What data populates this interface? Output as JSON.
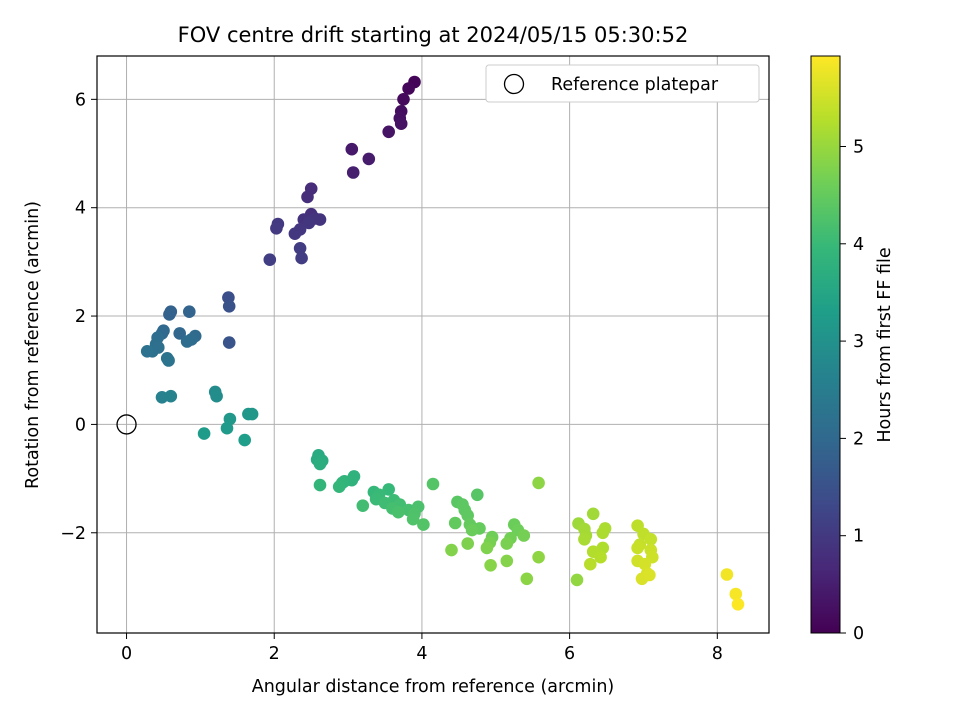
{
  "chart_data": {
    "type": "scatter",
    "title": "FOV centre drift starting at 2024/05/15 05:30:52",
    "xlabel": "Angular distance from reference (arcmin)",
    "ylabel": "Rotation from reference (arcmin)",
    "xlim": [
      -0.4,
      8.7
    ],
    "ylim": [
      -3.85,
      6.8
    ],
    "xticks": [
      0,
      2,
      4,
      6,
      8
    ],
    "yticks": [
      -2,
      0,
      2,
      4,
      6
    ],
    "grid": true,
    "legend": {
      "position": "top-right",
      "entries": [
        "Reference platepar"
      ]
    },
    "reference_point": {
      "x": 0,
      "y": 0,
      "marker": "open-circle"
    },
    "colorbar": {
      "label": "Hours from first FF file",
      "colormap": "viridis",
      "range": [
        0,
        5.93
      ],
      "ticks": [
        0,
        1,
        2,
        3,
        4,
        5
      ]
    },
    "colormap_stops": [
      "#440154",
      "#482878",
      "#3e4989",
      "#31688e",
      "#26828e",
      "#1f9e89",
      "#35b779",
      "#6ece58",
      "#b5de2b",
      "#fde725"
    ],
    "points": [
      {
        "x": 3.9,
        "y": 6.32,
        "h": 0.05
      },
      {
        "x": 3.82,
        "y": 6.2,
        "h": 0.1
      },
      {
        "x": 3.75,
        "y": 6.0,
        "h": 0.15
      },
      {
        "x": 3.72,
        "y": 5.78,
        "h": 0.2
      },
      {
        "x": 3.7,
        "y": 5.65,
        "h": 0.25
      },
      {
        "x": 3.72,
        "y": 5.55,
        "h": 0.28
      },
      {
        "x": 3.55,
        "y": 5.4,
        "h": 0.32
      },
      {
        "x": 3.05,
        "y": 5.08,
        "h": 0.4
      },
      {
        "x": 3.28,
        "y": 4.9,
        "h": 0.45
      },
      {
        "x": 3.07,
        "y": 4.65,
        "h": 0.5
      },
      {
        "x": 2.5,
        "y": 4.35,
        "h": 0.75
      },
      {
        "x": 2.45,
        "y": 4.2,
        "h": 0.78
      },
      {
        "x": 2.5,
        "y": 3.88,
        "h": 0.82
      },
      {
        "x": 2.4,
        "y": 3.78,
        "h": 0.85
      },
      {
        "x": 2.55,
        "y": 3.8,
        "h": 0.88
      },
      {
        "x": 2.62,
        "y": 3.78,
        "h": 0.9
      },
      {
        "x": 2.47,
        "y": 3.72,
        "h": 0.92
      },
      {
        "x": 2.35,
        "y": 3.6,
        "h": 0.95
      },
      {
        "x": 2.28,
        "y": 3.52,
        "h": 0.98
      },
      {
        "x": 2.05,
        "y": 3.7,
        "h": 1.0
      },
      {
        "x": 2.03,
        "y": 3.62,
        "h": 1.02
      },
      {
        "x": 2.35,
        "y": 3.25,
        "h": 1.05
      },
      {
        "x": 2.37,
        "y": 3.07,
        "h": 1.08
      },
      {
        "x": 1.94,
        "y": 3.04,
        "h": 1.1
      },
      {
        "x": 1.38,
        "y": 2.34,
        "h": 1.45
      },
      {
        "x": 1.39,
        "y": 2.18,
        "h": 1.5
      },
      {
        "x": 1.39,
        "y": 1.51,
        "h": 1.55
      },
      {
        "x": 0.6,
        "y": 2.08,
        "h": 1.85
      },
      {
        "x": 0.58,
        "y": 2.03,
        "h": 1.88
      },
      {
        "x": 0.85,
        "y": 2.08,
        "h": 1.9
      },
      {
        "x": 0.72,
        "y": 1.68,
        "h": 1.95
      },
      {
        "x": 0.5,
        "y": 1.73,
        "h": 2.0
      },
      {
        "x": 0.48,
        "y": 1.68,
        "h": 2.02
      },
      {
        "x": 0.93,
        "y": 1.63,
        "h": 2.05
      },
      {
        "x": 0.88,
        "y": 1.57,
        "h": 2.08
      },
      {
        "x": 0.82,
        "y": 1.53,
        "h": 2.1
      },
      {
        "x": 0.42,
        "y": 1.6,
        "h": 2.12
      },
      {
        "x": 0.4,
        "y": 1.48,
        "h": 2.15
      },
      {
        "x": 0.43,
        "y": 1.42,
        "h": 2.18
      },
      {
        "x": 0.35,
        "y": 1.35,
        "h": 2.2
      },
      {
        "x": 0.28,
        "y": 1.35,
        "h": 2.22
      },
      {
        "x": 0.55,
        "y": 1.22,
        "h": 2.25
      },
      {
        "x": 0.57,
        "y": 1.18,
        "h": 2.28
      },
      {
        "x": 0.48,
        "y": 0.5,
        "h": 2.6
      },
      {
        "x": 0.6,
        "y": 0.52,
        "h": 2.65
      },
      {
        "x": 1.2,
        "y": 0.6,
        "h": 2.85
      },
      {
        "x": 1.22,
        "y": 0.52,
        "h": 2.9
      },
      {
        "x": 1.65,
        "y": 0.19,
        "h": 3.1
      },
      {
        "x": 1.7,
        "y": 0.19,
        "h": 3.12
      },
      {
        "x": 1.4,
        "y": 0.1,
        "h": 3.15
      },
      {
        "x": 1.36,
        "y": -0.07,
        "h": 3.2
      },
      {
        "x": 1.05,
        "y": -0.17,
        "h": 3.25
      },
      {
        "x": 1.6,
        "y": -0.29,
        "h": 3.3
      },
      {
        "x": 2.6,
        "y": -0.57,
        "h": 3.6
      },
      {
        "x": 2.58,
        "y": -0.65,
        "h": 3.62
      },
      {
        "x": 2.65,
        "y": -0.67,
        "h": 3.65
      },
      {
        "x": 2.62,
        "y": -0.73,
        "h": 3.68
      },
      {
        "x": 3.08,
        "y": -0.96,
        "h": 3.8
      },
      {
        "x": 3.05,
        "y": -1.03,
        "h": 3.82
      },
      {
        "x": 2.95,
        "y": -1.05,
        "h": 3.85
      },
      {
        "x": 2.92,
        "y": -1.08,
        "h": 3.87
      },
      {
        "x": 2.62,
        "y": -1.12,
        "h": 3.9
      },
      {
        "x": 2.88,
        "y": -1.15,
        "h": 3.92
      },
      {
        "x": 3.35,
        "y": -1.25,
        "h": 3.95
      },
      {
        "x": 3.55,
        "y": -1.2,
        "h": 3.97
      },
      {
        "x": 3.42,
        "y": -1.3,
        "h": 4.0
      },
      {
        "x": 3.38,
        "y": -1.38,
        "h": 4.02
      },
      {
        "x": 3.62,
        "y": -1.4,
        "h": 4.05
      },
      {
        "x": 3.5,
        "y": -1.45,
        "h": 4.07
      },
      {
        "x": 3.2,
        "y": -1.5,
        "h": 4.1
      },
      {
        "x": 3.7,
        "y": -1.48,
        "h": 4.12
      },
      {
        "x": 3.6,
        "y": -1.55,
        "h": 4.15
      },
      {
        "x": 3.82,
        "y": -1.58,
        "h": 4.17
      },
      {
        "x": 3.68,
        "y": -1.62,
        "h": 4.2
      },
      {
        "x": 3.95,
        "y": -1.52,
        "h": 4.22
      },
      {
        "x": 3.9,
        "y": -1.65,
        "h": 4.25
      },
      {
        "x": 3.88,
        "y": -1.75,
        "h": 4.27
      },
      {
        "x": 4.02,
        "y": -1.85,
        "h": 4.3
      },
      {
        "x": 4.15,
        "y": -1.1,
        "h": 4.32
      },
      {
        "x": 4.75,
        "y": -1.3,
        "h": 4.35
      },
      {
        "x": 4.48,
        "y": -1.43,
        "h": 4.37
      },
      {
        "x": 4.55,
        "y": -1.48,
        "h": 4.4
      },
      {
        "x": 4.58,
        "y": -1.58,
        "h": 4.42
      },
      {
        "x": 4.62,
        "y": -1.68,
        "h": 4.45
      },
      {
        "x": 4.45,
        "y": -1.82,
        "h": 4.47
      },
      {
        "x": 4.65,
        "y": -1.85,
        "h": 4.5
      },
      {
        "x": 4.78,
        "y": -1.92,
        "h": 4.52
      },
      {
        "x": 4.68,
        "y": -1.95,
        "h": 4.55
      },
      {
        "x": 5.25,
        "y": -1.85,
        "h": 4.57
      },
      {
        "x": 5.3,
        "y": -1.95,
        "h": 4.6
      },
      {
        "x": 4.95,
        "y": -2.08,
        "h": 4.62
      },
      {
        "x": 5.2,
        "y": -2.1,
        "h": 4.65
      },
      {
        "x": 5.38,
        "y": -2.05,
        "h": 4.67
      },
      {
        "x": 4.92,
        "y": -2.18,
        "h": 4.7
      },
      {
        "x": 5.15,
        "y": -2.2,
        "h": 4.72
      },
      {
        "x": 4.62,
        "y": -2.2,
        "h": 4.75
      },
      {
        "x": 4.88,
        "y": -2.28,
        "h": 4.77
      },
      {
        "x": 4.4,
        "y": -2.32,
        "h": 4.8
      },
      {
        "x": 5.15,
        "y": -2.52,
        "h": 4.82
      },
      {
        "x": 4.93,
        "y": -2.6,
        "h": 4.85
      },
      {
        "x": 5.42,
        "y": -2.85,
        "h": 4.87
      },
      {
        "x": 5.58,
        "y": -1.08,
        "h": 4.9
      },
      {
        "x": 5.58,
        "y": -2.45,
        "h": 4.92
      },
      {
        "x": 6.1,
        "y": -2.87,
        "h": 4.95
      },
      {
        "x": 6.12,
        "y": -1.83,
        "h": 5.05
      },
      {
        "x": 6.32,
        "y": -1.65,
        "h": 5.08
      },
      {
        "x": 6.2,
        "y": -1.93,
        "h": 5.1
      },
      {
        "x": 6.22,
        "y": -2.05,
        "h": 5.12
      },
      {
        "x": 6.2,
        "y": -2.12,
        "h": 5.15
      },
      {
        "x": 6.48,
        "y": -1.92,
        "h": 5.17
      },
      {
        "x": 6.45,
        "y": -2.0,
        "h": 5.2
      },
      {
        "x": 6.45,
        "y": -2.28,
        "h": 5.22
      },
      {
        "x": 6.32,
        "y": -2.35,
        "h": 5.25
      },
      {
        "x": 6.42,
        "y": -2.45,
        "h": 5.27
      },
      {
        "x": 6.28,
        "y": -2.58,
        "h": 5.3
      },
      {
        "x": 6.92,
        "y": -1.87,
        "h": 5.35
      },
      {
        "x": 7.0,
        "y": -2.02,
        "h": 5.37
      },
      {
        "x": 7.1,
        "y": -2.12,
        "h": 5.4
      },
      {
        "x": 6.95,
        "y": -2.22,
        "h": 5.42
      },
      {
        "x": 6.92,
        "y": -2.28,
        "h": 5.45
      },
      {
        "x": 7.1,
        "y": -2.32,
        "h": 5.47
      },
      {
        "x": 7.12,
        "y": -2.45,
        "h": 5.5
      },
      {
        "x": 6.92,
        "y": -2.52,
        "h": 5.52
      },
      {
        "x": 7.02,
        "y": -2.58,
        "h": 5.55
      },
      {
        "x": 7.05,
        "y": -2.75,
        "h": 5.57
      },
      {
        "x": 6.98,
        "y": -2.85,
        "h": 5.6
      },
      {
        "x": 7.08,
        "y": -2.78,
        "h": 5.62
      },
      {
        "x": 8.13,
        "y": -2.77,
        "h": 5.82
      },
      {
        "x": 8.25,
        "y": -3.13,
        "h": 5.87
      },
      {
        "x": 8.28,
        "y": -3.32,
        "h": 5.92
      }
    ]
  }
}
